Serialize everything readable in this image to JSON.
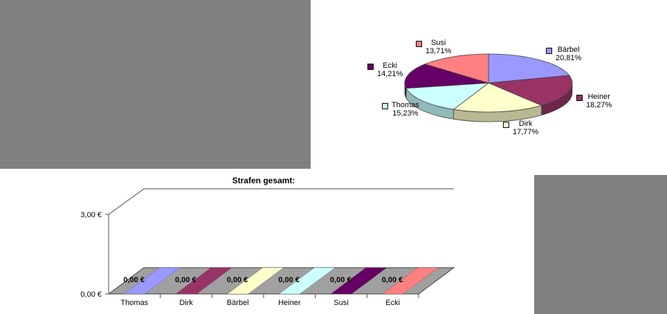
{
  "app": {
    "sheet_fill_color": "#808080",
    "chart_background": "#ffffff"
  },
  "chart_data": [
    {
      "type": "pie",
      "style": "3d",
      "title": "",
      "legend_position": "data-labels",
      "start_angle_deg": 0,
      "direction": "clockwise",
      "slices": [
        {
          "name": "Bärbel",
          "value": 20.81,
          "pct_label": "20,81%",
          "color": "#9999FF"
        },
        {
          "name": "Heiner",
          "value": 18.27,
          "pct_label": "18,27%",
          "color": "#993366"
        },
        {
          "name": "Dirk",
          "value": 17.77,
          "pct_label": "17,77%",
          "color": "#FFFFCC"
        },
        {
          "name": "Thomas",
          "value": 15.23,
          "pct_label": "15,23%",
          "color": "#CCFFFF"
        },
        {
          "name": "Ecki",
          "value": 14.21,
          "pct_label": "14,21%",
          "color": "#660066"
        },
        {
          "name": "Susi",
          "value": 13.71,
          "pct_label": "13,71%",
          "color": "#FF8080"
        }
      ]
    },
    {
      "type": "bar",
      "style": "3d",
      "title": "Strafen gesamt:",
      "categories": [
        "Thomas",
        "Dirk",
        "Bärbel",
        "Heiner",
        "Susi",
        "Ecki"
      ],
      "values": [
        0,
        0,
        0,
        0,
        0,
        0
      ],
      "data_labels": [
        "0,00 €",
        "0,00 €",
        "0,00 €",
        "0,00 €",
        "0,00 €",
        "0,00 €"
      ],
      "colors": [
        "#9999FF",
        "#993366",
        "#FFFFCC",
        "#CCFFFF",
        "#660066",
        "#FF8080"
      ],
      "y_ticks": [
        "0,00 €",
        "3,00 €"
      ],
      "ylim": [
        0,
        3
      ],
      "xlabel": "",
      "ylabel": "",
      "grid": false,
      "floor_color": "#A0A0A0",
      "line_color": "#4a4a4a"
    }
  ]
}
